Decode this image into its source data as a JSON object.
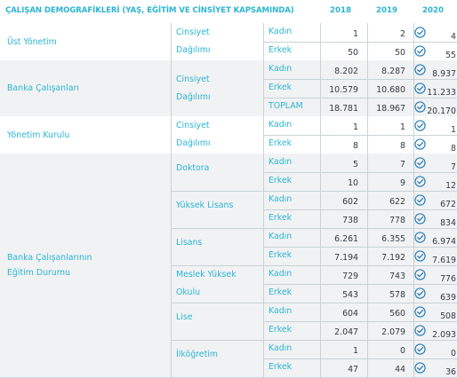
{
  "header": {
    "title": "ÇALIŞAN DEMOGRAFİKLERİ (YAŞ, EĞİTİM VE CİNSİYET KAPSAMINDA)",
    "y2018": "2018",
    "y2019": "2019",
    "y2020": "2020"
  },
  "groups": [
    {
      "label": "Üst Yönetim",
      "subs": [
        {
          "label": "Cinsiyet\nDağılımı",
          "rows": [
            {
              "k": "Kadın",
              "a": "1",
              "b": "2",
              "c": "4"
            },
            {
              "k": "Erkek",
              "a": "50",
              "b": "50",
              "c": "55"
            }
          ]
        }
      ]
    },
    {
      "label": "Banka Çalışanları",
      "subs": [
        {
          "label": "Cinsiyet\nDağılımı",
          "rows": [
            {
              "k": "Kadın",
              "a": "8.202",
              "b": "8.287",
              "c": "8.937"
            },
            {
              "k": "Erkek",
              "a": "10.579",
              "b": "10.680",
              "c": "11.233"
            },
            {
              "k": "TOPLAM",
              "a": "18.781",
              "b": "18.967",
              "c": "20.170"
            }
          ]
        }
      ]
    },
    {
      "label": "Yönetim Kurulu",
      "subs": [
        {
          "label": "Cinsiyet\nDağılımı",
          "rows": [
            {
              "k": "Kadın",
              "a": "1",
              "b": "1",
              "c": "1"
            },
            {
              "k": "Erkek",
              "a": "8",
              "b": "8",
              "c": "8"
            }
          ]
        }
      ]
    },
    {
      "label": "Banka Çalışanlarının\nEğitim Durumu",
      "subs": [
        {
          "label": "Doktora",
          "rows": [
            {
              "k": "Kadın",
              "a": "5",
              "b": "7",
              "c": "7"
            },
            {
              "k": "Erkek",
              "a": "10",
              "b": "9",
              "c": "12"
            }
          ]
        },
        {
          "label": "Yüksek Lisans",
          "rows": [
            {
              "k": "Kadın",
              "a": "602",
              "b": "622",
              "c": "672"
            },
            {
              "k": "Erkek",
              "a": "738",
              "b": "778",
              "c": "834"
            }
          ]
        },
        {
          "label": "Lisans",
          "rows": [
            {
              "k": "Kadın",
              "a": "6.261",
              "b": "6.355",
              "c": "6.974"
            },
            {
              "k": "Erkek",
              "a": "7.194",
              "b": "7.192",
              "c": "7.619"
            }
          ]
        },
        {
          "label": "Meslek Yüksek\nOkulu",
          "rows": [
            {
              "k": "Kadın",
              "a": "729",
              "b": "743",
              "c": "776"
            },
            {
              "k": "Erkek",
              "a": "543",
              "b": "578",
              "c": "639"
            }
          ]
        },
        {
          "label": "Lise",
          "rows": [
            {
              "k": "Kadın",
              "a": "604",
              "b": "560",
              "c": "508"
            },
            {
              "k": "Erkek",
              "a": "2.047",
              "b": "2.079",
              "c": "2.093"
            }
          ]
        },
        {
          "label": "İlköğretim",
          "rows": [
            {
              "k": "Kadın",
              "a": "1",
              "b": "0",
              "c": "0"
            },
            {
              "k": "Erkek",
              "a": "47",
              "b": "44",
              "c": "36"
            }
          ]
        }
      ]
    }
  ],
  "colors": {
    "accent": "#2cb5d4",
    "value": "#333a40",
    "grid": "#c9d3d8",
    "band": "#f1f2f3"
  },
  "icons": {
    "verified": "check-circle-icon"
  }
}
